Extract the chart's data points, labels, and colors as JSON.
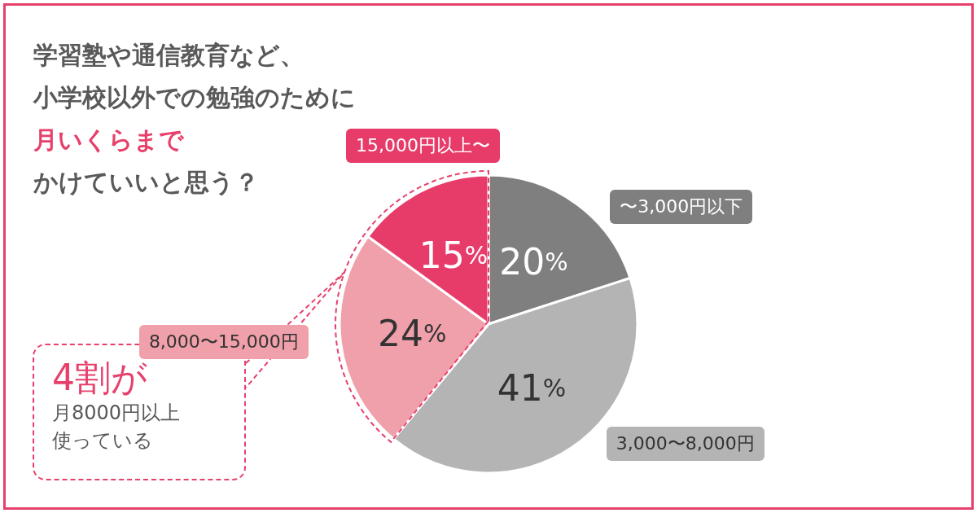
{
  "chart_data": {
    "type": "pie",
    "title": "学習塾や通信教育など、小学校以外での勉強のために",
    "subtitle": "月いくらまで",
    "categories": [
      "〜3,000円以下",
      "3,000〜8,000円",
      "8,000〜15,000円",
      "15,000円以上〜"
    ],
    "values": [
      20,
      41,
      24,
      15
    ],
    "value_labels": [
      "20%",
      "41%",
      "24%",
      "15%"
    ],
    "colors": [
      "#7f7f7f",
      "#b4b4b4",
      "#f0a0aa",
      "#e73c6a"
    ],
    "annotations": [
      "4割が",
      "月8000円以上使っている",
      "かけていいと思う？"
    ],
    "legend": false
  }
}
